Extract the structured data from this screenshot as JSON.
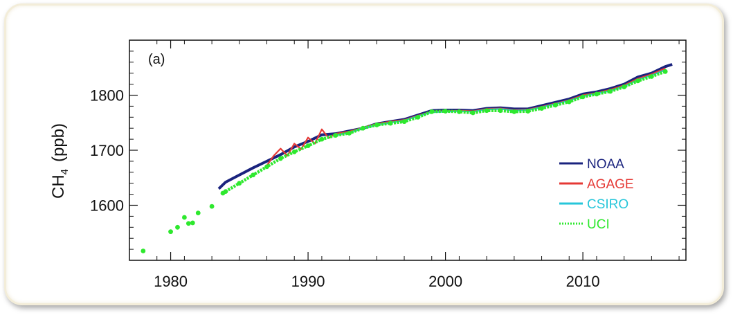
{
  "chart_data": {
    "type": "line",
    "panel_label": "(a)",
    "title": "",
    "xlabel": "",
    "ylabel_main": "CH",
    "ylabel_sub": "4",
    "ylabel_unit": "(ppb)",
    "xlim": [
      1977,
      2017.5
    ],
    "ylim": [
      1500,
      1900
    ],
    "x_ticks": [
      1980,
      1990,
      2000,
      2010
    ],
    "x_tick_labels": [
      "1980",
      "1990",
      "2000",
      "2010"
    ],
    "y_ticks": [
      1600,
      1700,
      1800
    ],
    "y_tick_labels": [
      "1600",
      "1700",
      "1800"
    ],
    "grid": false,
    "legend_position": "right",
    "series": [
      {
        "name": "NOAA",
        "color": "#1a237e",
        "style": "solid",
        "x": [
          1983.5,
          1984,
          1985,
          1986,
          1987,
          1988,
          1989,
          1990,
          1991,
          1992,
          1993,
          1994,
          1995,
          1996,
          1997,
          1998,
          1999,
          2000,
          2001,
          2002,
          2003,
          2004,
          2005,
          2006,
          2007,
          2008,
          2009,
          2010,
          2011,
          2012,
          2013,
          2014,
          2015,
          2016,
          2016.5
        ],
        "y": [
          1630,
          1642,
          1655,
          1668,
          1680,
          1692,
          1706,
          1716,
          1728,
          1730,
          1735,
          1740,
          1748,
          1752,
          1756,
          1764,
          1772,
          1773,
          1773,
          1772,
          1776,
          1777,
          1775,
          1775,
          1781,
          1787,
          1793,
          1802,
          1806,
          1812,
          1820,
          1833,
          1840,
          1852,
          1856
        ]
      },
      {
        "name": "AGAGE",
        "color": "#e53935",
        "style": "solid",
        "x": [
          1987,
          1987.5,
          1988,
          1988.5,
          1989,
          1989.5,
          1990,
          1990.5,
          1991,
          1991.5,
          1992,
          1993,
          1994,
          1995,
          1996,
          1997,
          1998,
          1999,
          2000,
          2001,
          2002,
          2003,
          2004,
          2005,
          2006,
          2007,
          2008,
          2009,
          2010,
          2011,
          2012,
          2013,
          2014,
          2015,
          2016
        ],
        "y": [
          1672,
          1690,
          1703,
          1690,
          1712,
          1702,
          1723,
          1712,
          1738,
          1722,
          1730,
          1734,
          1741,
          1748,
          1752,
          1755,
          1763,
          1770,
          1771,
          1772,
          1771,
          1775,
          1776,
          1773,
          1774,
          1779,
          1785,
          1791,
          1800,
          1804,
          1810,
          1818,
          1830,
          1838,
          1849
        ]
      },
      {
        "name": "CSIRO",
        "color": "#26c6da",
        "style": "solid",
        "x": [
          1992,
          1993,
          1994,
          1995,
          1996,
          1997,
          1998,
          1999,
          2000,
          2001,
          2002,
          2003,
          2004,
          2005,
          2006,
          2007,
          2008,
          2009,
          2010,
          2011,
          2012,
          2013,
          2014,
          2015,
          2016
        ],
        "y": [
          1727,
          1732,
          1740,
          1746,
          1750,
          1754,
          1762,
          1769,
          1770,
          1771,
          1770,
          1774,
          1775,
          1772,
          1773,
          1778,
          1784,
          1790,
          1798,
          1803,
          1808,
          1816,
          1828,
          1836,
          1846
        ]
      },
      {
        "name": "UCI",
        "color": "#2ee82e",
        "style": "dotted",
        "x": [
          1978,
          1980,
          1980.5,
          1981,
          1981.3,
          1981.6,
          1982,
          1983,
          1983.8,
          1984,
          1985,
          1986,
          1987,
          1988,
          1989,
          1990,
          1991,
          1992,
          1993,
          1994,
          1995,
          1996,
          1997,
          1998,
          1999,
          2000,
          2001,
          2002,
          2003,
          2004,
          2005,
          2006,
          2007,
          2008,
          2009,
          2010,
          2011,
          2012,
          2013,
          2014,
          2015,
          2016
        ],
        "y": [
          1517,
          1552,
          1560,
          1578,
          1567,
          1568,
          1586,
          1598,
          1622,
          1625,
          1640,
          1655,
          1670,
          1685,
          1697,
          1708,
          1720,
          1727,
          1731,
          1740,
          1746,
          1749,
          1752,
          1760,
          1770,
          1771,
          1770,
          1768,
          1772,
          1772,
          1770,
          1771,
          1776,
          1782,
          1788,
          1797,
          1802,
          1807,
          1815,
          1826,
          1834,
          1843
        ]
      }
    ]
  }
}
